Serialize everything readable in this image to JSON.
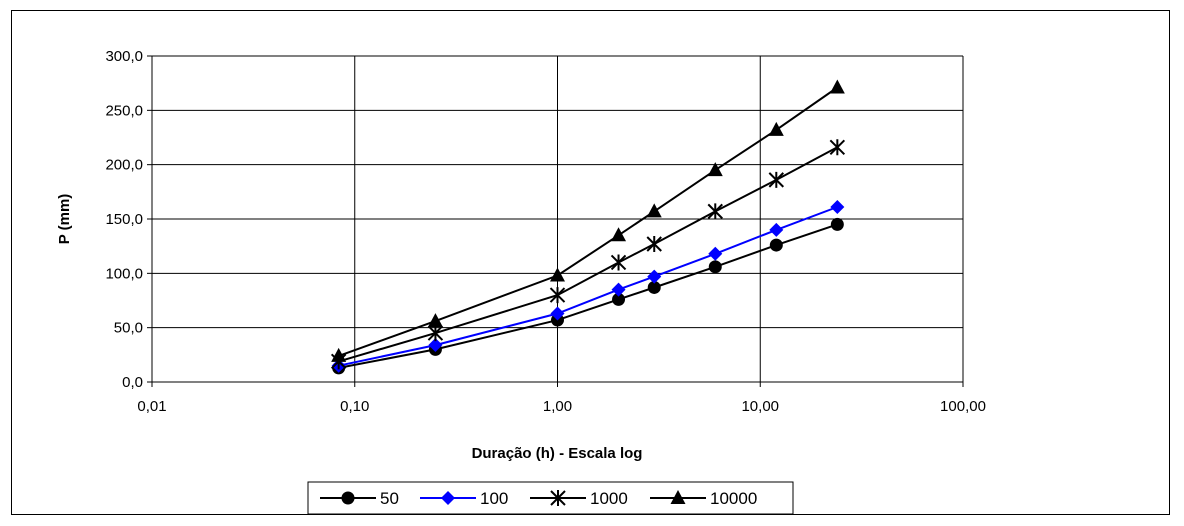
{
  "chart_data": {
    "type": "line",
    "x_scale": "log",
    "xlabel": "Duração (h) - Escala log",
    "ylabel": "P (mm)",
    "xlim": [
      0.01,
      100
    ],
    "ylim": [
      0,
      300
    ],
    "x_ticks": [
      "0,01",
      "0,10",
      "1,00",
      "10,00",
      "100,00"
    ],
    "y_ticks": [
      "0,0",
      "50,0",
      "100,0",
      "150,0",
      "200,0",
      "250,0",
      "300,0"
    ],
    "grid": true,
    "legend_position": "bottom",
    "x": [
      0.0833,
      0.25,
      1,
      2,
      3,
      6,
      12,
      24
    ],
    "series": [
      {
        "name": "50",
        "color": "#000000",
        "marker": "circle",
        "values": [
          13,
          30,
          57,
          76,
          87,
          106,
          126,
          145
        ]
      },
      {
        "name": "100",
        "color": "#0000ff",
        "marker": "diamond",
        "values": [
          15,
          34,
          63,
          85,
          97,
          118,
          140,
          161
        ]
      },
      {
        "name": "1000",
        "color": "#000000",
        "marker": "star",
        "values": [
          19,
          45,
          80,
          110,
          127,
          157,
          186,
          216
        ]
      },
      {
        "name": "10000",
        "color": "#000000",
        "marker": "triangle",
        "values": [
          24,
          56,
          98,
          135,
          157,
          195,
          232,
          271
        ]
      }
    ]
  }
}
